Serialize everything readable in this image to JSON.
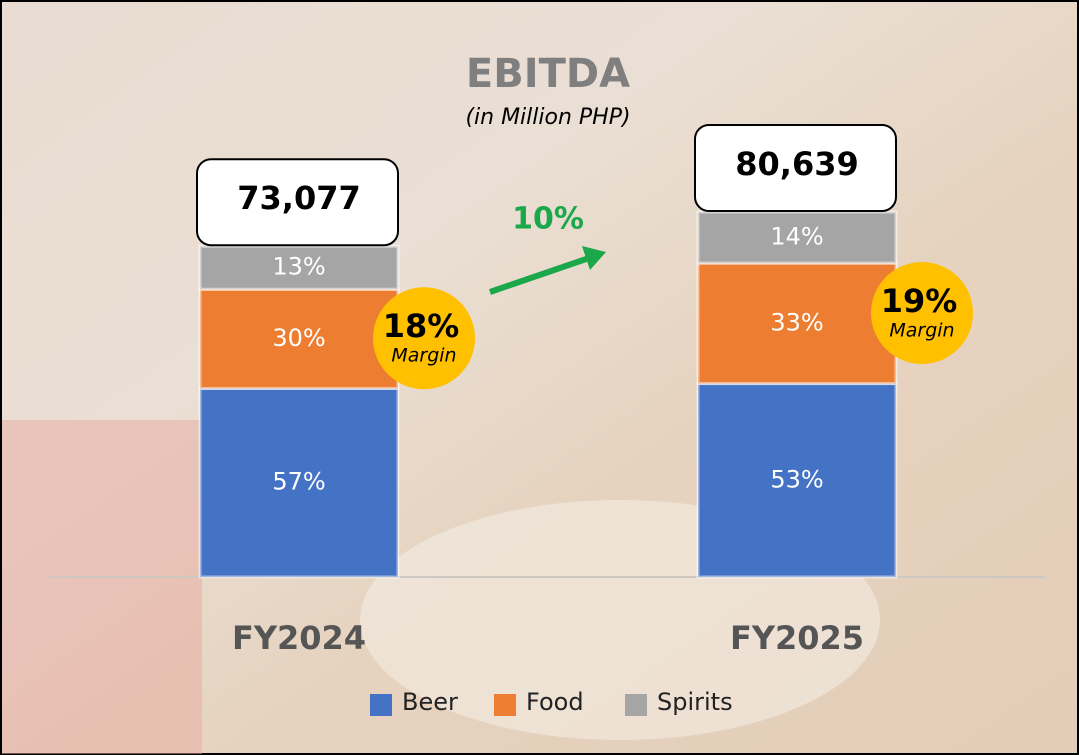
{
  "chart_data": {
    "type": "bar",
    "stacked": true,
    "title": "EBITDA",
    "subtitle": "(in Million PHP)",
    "categories": [
      "FY2024",
      "FY2025"
    ],
    "series": [
      {
        "name": "Beer",
        "color": "#4472c4",
        "values": [
          57,
          53
        ],
        "value_labels": [
          "57%",
          "53%"
        ]
      },
      {
        "name": "Food",
        "color": "#ed7d31",
        "values": [
          30,
          33
        ],
        "value_labels": [
          "30%",
          "33%"
        ]
      },
      {
        "name": "Spirits",
        "color": "#a5a5a5",
        "values": [
          13,
          14
        ],
        "value_labels": [
          "13%",
          "14%"
        ]
      }
    ],
    "totals": {
      "values": [
        73077,
        80639
      ],
      "labels": [
        "73,077",
        "80,639"
      ]
    },
    "growth": "10%",
    "margins": [
      {
        "value": "18%",
        "label": "Margin"
      },
      {
        "value": "19%",
        "label": "Margin"
      }
    ],
    "legend": "bottom"
  }
}
